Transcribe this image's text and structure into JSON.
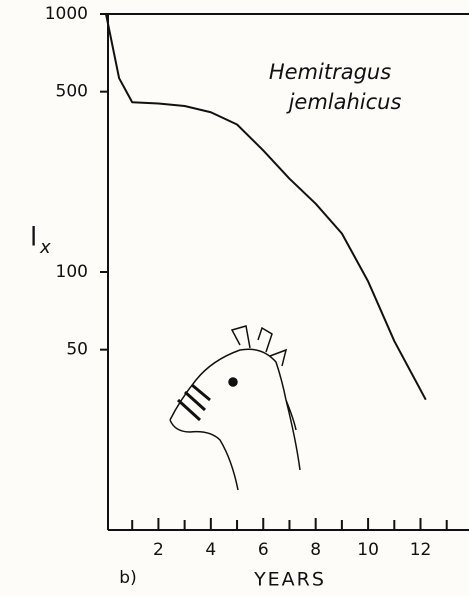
{
  "chart_data": {
    "type": "line",
    "log_y": true,
    "annotation": [
      "Hemitragus",
      "jemlahicus"
    ],
    "ylabel": {
      "main": "l",
      "sub": "x"
    },
    "xlabel": "YEARS",
    "panel_label": "b)",
    "x": [
      0,
      0.5,
      1,
      2,
      3,
      4,
      5,
      6,
      7,
      8,
      9,
      10,
      11,
      12.2
    ],
    "series": [
      {
        "color": "#111111",
        "values": [
          1000,
          564,
          455,
          450,
          440,
          416,
          373,
          296,
          230,
          184,
          141,
          92,
          54,
          32
        ]
      }
    ],
    "xlim": [
      0,
      13.85
    ],
    "ylim": [
      10,
      1000
    ],
    "xticks": [
      2,
      4,
      6,
      8,
      10,
      12
    ],
    "minor_xticks": [
      1,
      3,
      5,
      7,
      9,
      11,
      13
    ],
    "yticks": [
      50,
      100,
      500,
      1000
    ]
  }
}
